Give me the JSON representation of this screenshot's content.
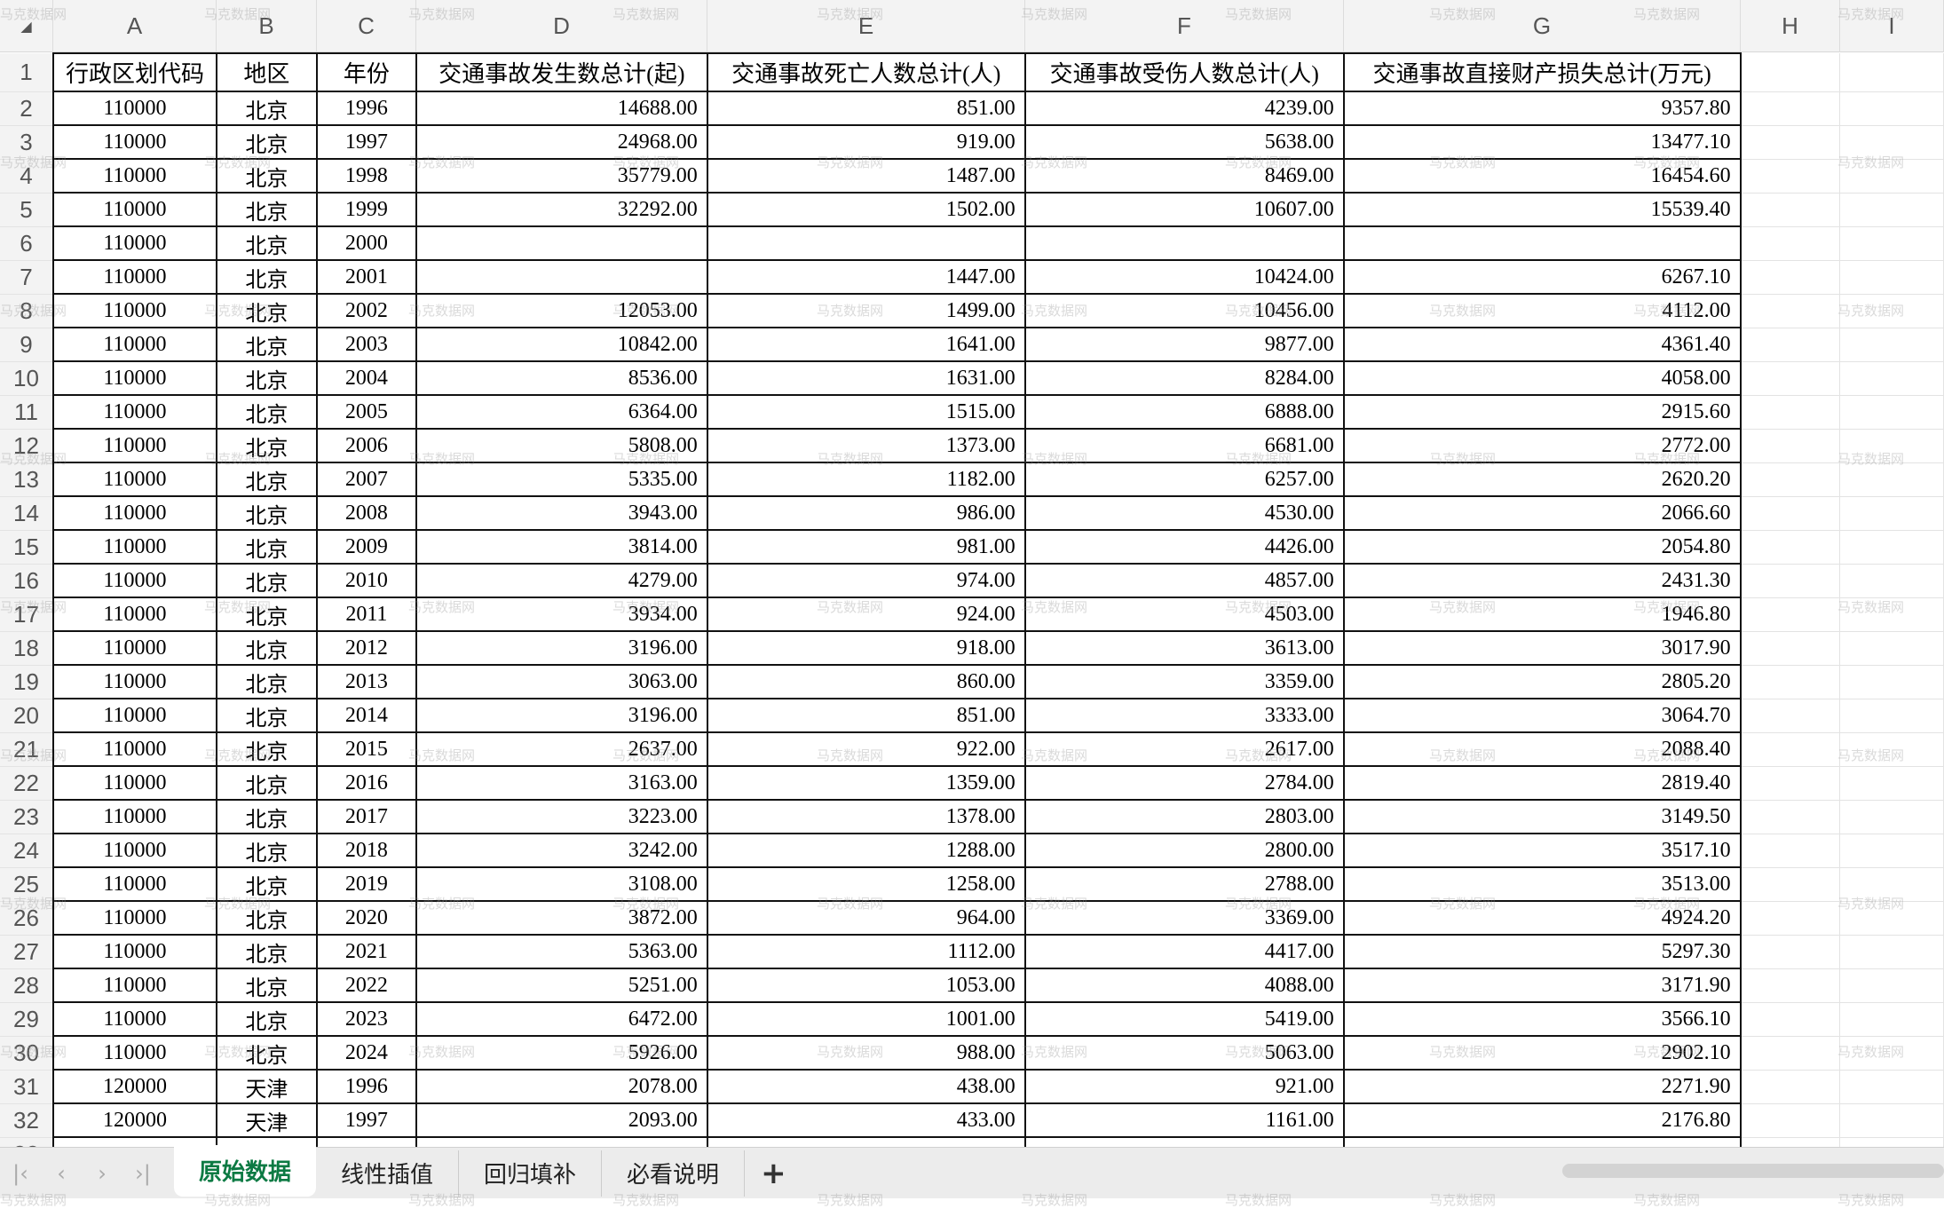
{
  "columns": [
    "A",
    "B",
    "C",
    "D",
    "E",
    "F",
    "G",
    "H",
    "I"
  ],
  "headers": [
    "行政区划代码",
    "地区",
    "年份",
    "交通事故发生数总计(起)",
    "交通事故死亡人数总计(人)",
    "交通事故受伤人数总计(人)",
    "交通事故直接财产损失总计(万元)"
  ],
  "rows": [
    [
      "110000",
      "北京",
      "1996",
      "14688.00",
      "851.00",
      "4239.00",
      "9357.80"
    ],
    [
      "110000",
      "北京",
      "1997",
      "24968.00",
      "919.00",
      "5638.00",
      "13477.10"
    ],
    [
      "110000",
      "北京",
      "1998",
      "35779.00",
      "1487.00",
      "8469.00",
      "16454.60"
    ],
    [
      "110000",
      "北京",
      "1999",
      "32292.00",
      "1502.00",
      "10607.00",
      "15539.40"
    ],
    [
      "110000",
      "北京",
      "2000",
      "",
      "",
      "",
      ""
    ],
    [
      "110000",
      "北京",
      "2001",
      "",
      "1447.00",
      "10424.00",
      "6267.10"
    ],
    [
      "110000",
      "北京",
      "2002",
      "12053.00",
      "1499.00",
      "10456.00",
      "4112.00"
    ],
    [
      "110000",
      "北京",
      "2003",
      "10842.00",
      "1641.00",
      "9877.00",
      "4361.40"
    ],
    [
      "110000",
      "北京",
      "2004",
      "8536.00",
      "1631.00",
      "8284.00",
      "4058.00"
    ],
    [
      "110000",
      "北京",
      "2005",
      "6364.00",
      "1515.00",
      "6888.00",
      "2915.60"
    ],
    [
      "110000",
      "北京",
      "2006",
      "5808.00",
      "1373.00",
      "6681.00",
      "2772.00"
    ],
    [
      "110000",
      "北京",
      "2007",
      "5335.00",
      "1182.00",
      "6257.00",
      "2620.20"
    ],
    [
      "110000",
      "北京",
      "2008",
      "3943.00",
      "986.00",
      "4530.00",
      "2066.60"
    ],
    [
      "110000",
      "北京",
      "2009",
      "3814.00",
      "981.00",
      "4426.00",
      "2054.80"
    ],
    [
      "110000",
      "北京",
      "2010",
      "4279.00",
      "974.00",
      "4857.00",
      "2431.30"
    ],
    [
      "110000",
      "北京",
      "2011",
      "3934.00",
      "924.00",
      "4503.00",
      "1946.80"
    ],
    [
      "110000",
      "北京",
      "2012",
      "3196.00",
      "918.00",
      "3613.00",
      "3017.90"
    ],
    [
      "110000",
      "北京",
      "2013",
      "3063.00",
      "860.00",
      "3359.00",
      "2805.20"
    ],
    [
      "110000",
      "北京",
      "2014",
      "3196.00",
      "851.00",
      "3333.00",
      "3064.70"
    ],
    [
      "110000",
      "北京",
      "2015",
      "2637.00",
      "922.00",
      "2617.00",
      "2088.40"
    ],
    [
      "110000",
      "北京",
      "2016",
      "3163.00",
      "1359.00",
      "2784.00",
      "2819.40"
    ],
    [
      "110000",
      "北京",
      "2017",
      "3223.00",
      "1378.00",
      "2803.00",
      "3149.50"
    ],
    [
      "110000",
      "北京",
      "2018",
      "3242.00",
      "1288.00",
      "2800.00",
      "3517.10"
    ],
    [
      "110000",
      "北京",
      "2019",
      "3108.00",
      "1258.00",
      "2788.00",
      "3513.00"
    ],
    [
      "110000",
      "北京",
      "2020",
      "3872.00",
      "964.00",
      "3369.00",
      "4924.20"
    ],
    [
      "110000",
      "北京",
      "2021",
      "5363.00",
      "1112.00",
      "4417.00",
      "5297.30"
    ],
    [
      "110000",
      "北京",
      "2022",
      "5251.00",
      "1053.00",
      "4088.00",
      "3171.90"
    ],
    [
      "110000",
      "北京",
      "2023",
      "6472.00",
      "1001.00",
      "5419.00",
      "3566.10"
    ],
    [
      "110000",
      "北京",
      "2024",
      "5926.00",
      "988.00",
      "5063.00",
      "2902.10"
    ],
    [
      "120000",
      "天津",
      "1996",
      "2078.00",
      "438.00",
      "921.00",
      "2271.90"
    ],
    [
      "120000",
      "天津",
      "1997",
      "2093.00",
      "433.00",
      "1161.00",
      "2176.80"
    ]
  ],
  "sheet_tabs": [
    {
      "label": "原始数据",
      "active": true
    },
    {
      "label": "线性插值"
    },
    {
      "label": "回归填补"
    },
    {
      "label": "必看说明"
    }
  ],
  "add_sheet": "+",
  "nav_icons": [
    "first-sheet-icon",
    "prev-sheet-icon",
    "next-sheet-icon",
    "last-sheet-icon"
  ],
  "nav_glyphs": [
    "|‹",
    "‹",
    "›",
    "›|"
  ],
  "watermark": "马克数据网",
  "accent_color": "#0c7a43"
}
